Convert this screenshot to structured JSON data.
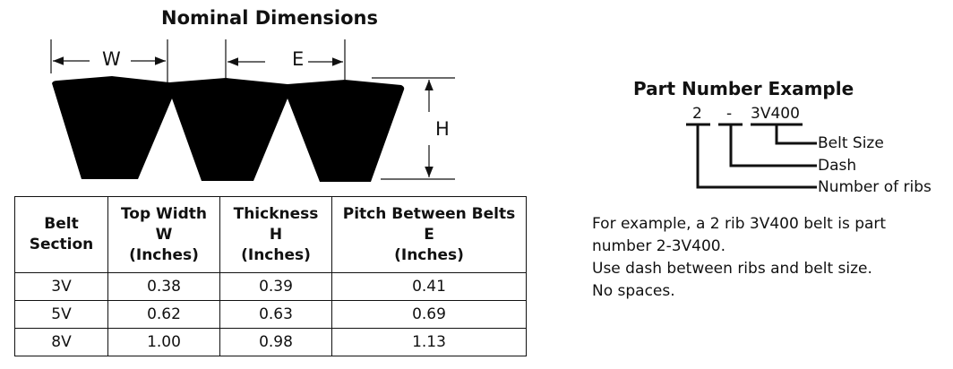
{
  "diagram": {
    "title": "Nominal Dimensions",
    "labels": {
      "w": "W",
      "e": "E",
      "h": "H"
    }
  },
  "table": {
    "headers": [
      [
        "Belt",
        "Section"
      ],
      [
        "Top Width",
        "W",
        "(Inches)"
      ],
      [
        "Thickness",
        "H",
        "(Inches)"
      ],
      [
        "Pitch Between Belts",
        "E",
        "(Inches)"
      ]
    ],
    "rows": [
      [
        "3V",
        "0.38",
        "0.39",
        "0.41"
      ],
      [
        "5V",
        "0.62",
        "0.63",
        "0.69"
      ],
      [
        "8V",
        "1.00",
        "0.98",
        "1.13"
      ]
    ]
  },
  "part_number": {
    "title": "Part Number Example",
    "ribs": "2",
    "dash": "-",
    "size": "3V400",
    "callouts": {
      "size": "Belt Size",
      "dash": "Dash",
      "ribs": "Number of ribs"
    }
  },
  "description": [
    "For example, a 2 rib 3V400 belt is part",
    "number 2-3V400.",
    "Use dash between ribs and belt size.",
    "No spaces."
  ]
}
